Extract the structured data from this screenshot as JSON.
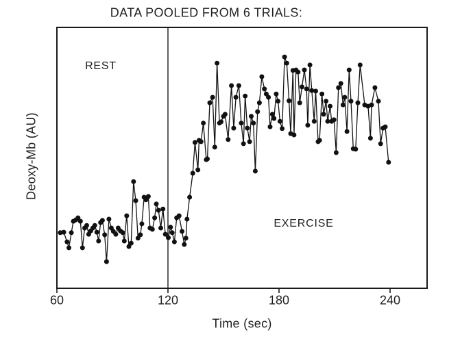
{
  "figure": {
    "background": "#ffffff",
    "ink_color": "#1a1a1a"
  },
  "chart_data": {
    "type": "scatter",
    "subtype": "connected scatter (line with filled circle markers)",
    "title": "DATA POOLED FROM 6 TRIALS:",
    "xlabel": "Time (sec)",
    "ylabel": "Deoxy-Mb (AU)",
    "xlim": [
      60,
      260
    ],
    "x_ticks": [
      60,
      120,
      180,
      240
    ],
    "x_tick_labels": [
      "60",
      "120",
      "180",
      "240"
    ],
    "y_axis_note": "y axis has no tick marks or numbers (arbitrary units); au_norm values are normalized 0 = bottom of plot box, 1 = top of plot box",
    "event_line_x": 120,
    "grid": false,
    "legend": false,
    "annotations": [
      {
        "text": "REST",
        "region": "left of vertical line at 120 s, upper area"
      },
      {
        "text": "EXERCISE",
        "region": "right of vertical line at 120 s, lower area"
      }
    ],
    "series": [
      {
        "name": "Deoxy-Mb pooled from 6 trials",
        "marker": "filled-circle",
        "line": "solid",
        "color": "#111111",
        "t_sec": [
          61.8,
          63.7,
          65.5,
          66.5,
          67.8,
          68.9,
          70.2,
          71.4,
          72.7,
          73.8,
          75.0,
          76.1,
          77.2,
          78.3,
          79.4,
          80.5,
          81.6,
          82.5,
          83.6,
          84.6,
          85.8,
          86.8,
          88.1,
          89.4,
          90.5,
          91.8,
          93.1,
          94.3,
          95.6,
          96.4,
          97.7,
          98.9,
          100.1,
          101.4,
          102.6,
          103.8,
          105.1,
          105.9,
          107.1,
          108.1,
          109.4,
          110.3,
          111.6,
          112.8,
          113.7,
          114.9,
          116.1,
          117.3,
          118.6,
          120.2,
          121.4,
          122.3,
          123.5,
          124.7,
          126.0,
          127.6,
          128.8,
          129.7,
          130.3,
          131.7,
          133.4,
          134.6,
          136.2,
          136.8,
          137.9,
          139.1,
          140.7,
          141.3,
          142.6,
          144.1,
          145.3,
          146.5,
          147.8,
          148.7,
          150.0,
          150.9,
          152.5,
          154.3,
          155.5,
          156.7,
          158.3,
          159.6,
          160.8,
          161.7,
          162.9,
          164.1,
          165.0,
          166.2,
          167.2,
          168.4,
          169.4,
          170.7,
          172.1,
          173.1,
          174.3,
          175.2,
          176.4,
          177.3,
          178.5,
          179.5,
          180.5,
          181.7,
          183.0,
          184.2,
          185.4,
          186.3,
          187.5,
          188.1,
          189.2,
          190.3,
          191.2,
          192.4,
          193.7,
          194.9,
          195.5,
          196.7,
          197.7,
          199.0,
          199.8,
          201.1,
          201.9,
          203.2,
          204.1,
          205.4,
          206.3,
          207.6,
          208.4,
          209.7,
          210.9,
          212.1,
          213.4,
          214.6,
          215.5,
          216.7,
          217.9,
          218.9,
          220.1,
          221.4,
          222.6,
          223.8,
          226.3,
          228.1,
          229.4,
          230.0,
          231.8,
          233.7,
          234.9,
          236.2,
          237.4,
          239.2
        ],
        "au_norm": [
          0.213,
          0.215,
          0.178,
          0.155,
          0.213,
          0.257,
          0.262,
          0.27,
          0.257,
          0.155,
          0.231,
          0.241,
          0.207,
          0.22,
          0.231,
          0.241,
          0.215,
          0.181,
          0.252,
          0.26,
          0.205,
          0.102,
          0.265,
          0.231,
          0.218,
          0.207,
          0.231,
          0.22,
          0.213,
          0.181,
          0.278,
          0.16,
          0.173,
          0.409,
          0.336,
          0.192,
          0.205,
          0.247,
          0.349,
          0.339,
          0.352,
          0.231,
          0.226,
          0.27,
          0.323,
          0.299,
          0.231,
          0.304,
          0.207,
          0.194,
          0.234,
          0.213,
          0.178,
          0.27,
          0.278,
          0.218,
          0.168,
          0.192,
          0.265,
          0.349,
          0.441,
          0.559,
          0.454,
          0.567,
          0.562,
          0.633,
          0.493,
          0.496,
          0.711,
          0.732,
          0.541,
          0.863,
          0.633,
          0.638,
          0.659,
          0.667,
          0.57,
          0.777,
          0.614,
          0.732,
          0.777,
          0.633,
          0.554,
          0.737,
          0.614,
          0.562,
          0.659,
          0.633,
          0.449,
          0.677,
          0.711,
          0.811,
          0.764,
          0.745,
          0.732,
          0.619,
          0.667,
          0.651,
          0.745,
          0.717,
          0.64,
          0.612,
          0.887,
          0.863,
          0.719,
          0.593,
          0.835,
          0.588,
          0.837,
          0.829,
          0.711,
          0.772,
          0.837,
          0.764,
          0.625,
          0.856,
          0.758,
          0.64,
          0.756,
          0.562,
          0.567,
          0.745,
          0.667,
          0.717,
          0.64,
          0.698,
          0.64,
          0.646,
          0.52,
          0.769,
          0.785,
          0.703,
          0.732,
          0.601,
          0.837,
          0.717,
          0.535,
          0.533,
          0.711,
          0.856,
          0.703,
          0.698,
          0.575,
          0.703,
          0.769,
          0.717,
          0.554,
          0.614,
          0.619,
          0.483
        ]
      }
    ]
  }
}
